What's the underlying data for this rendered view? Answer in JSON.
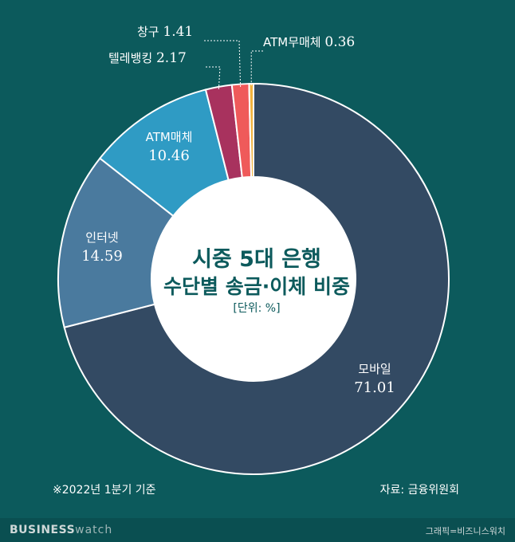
{
  "chart_data": {
    "type": "pie",
    "title": "시중 5대 은행",
    "subtitle": "수단별 송금·이체 비중",
    "unit_label": "[단위: %]",
    "slices": [
      {
        "label": "모바일",
        "value": 71.01,
        "value_text": "71.01",
        "color": "#334a63"
      },
      {
        "label": "인터넷",
        "value": 14.59,
        "value_text": "14.59",
        "color": "#4a7a9e"
      },
      {
        "label": "ATM매체",
        "value": 10.46,
        "value_text": "10.46",
        "color": "#2f9bc4"
      },
      {
        "label": "텔레뱅킹",
        "value": 2.17,
        "value_text": "2.17",
        "color": "#a8325e"
      },
      {
        "label": "창구",
        "value": 1.41,
        "value_text": "1.41",
        "color": "#ef5a5a"
      },
      {
        "label": "ATM무매체",
        "value": 0.36,
        "value_text": "0.36",
        "color": "#f2b33d"
      }
    ]
  },
  "footnote": "※2022년 1분기 기준",
  "source": "자료: 금융위원회",
  "brand": {
    "bold": "BUSINESS",
    "light": "watch"
  },
  "credit": "그래픽=비즈니스워치"
}
